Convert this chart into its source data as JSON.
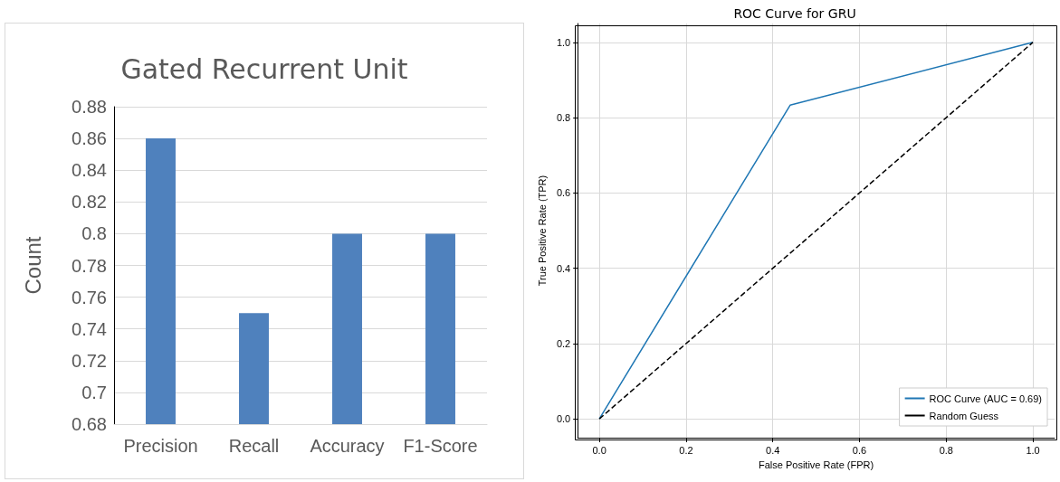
{
  "chart_data": [
    {
      "type": "bar",
      "title": "Gated Recurrent Unit",
      "ylabel": "Count",
      "categories": [
        "Precision",
        "Recall",
        "Accuracy",
        "F1-Score"
      ],
      "values": [
        0.86,
        0.75,
        0.8,
        0.8
      ],
      "color": "#4f81bd",
      "ylim": [
        0.68,
        0.88
      ],
      "yticks": [
        0.68,
        0.7,
        0.72,
        0.74,
        0.76,
        0.78,
        0.8,
        0.82,
        0.84,
        0.86,
        0.88
      ],
      "grid": "y",
      "legend": false
    },
    {
      "type": "line",
      "title": "ROC Curve for GRU",
      "xlabel": "False Positive Rate (FPR)",
      "ylabel": "True Positive Rate (TPR)",
      "xlim": [
        -0.05,
        1.05
      ],
      "ylim": [
        -0.05,
        1.05
      ],
      "xticks": [
        {
          "value": 0,
          "label": "0.0"
        },
        0.2,
        0.4,
        0.6,
        0.8,
        {
          "value": 1,
          "label": "1.0"
        }
      ],
      "yticks": [
        {
          "value": 0,
          "label": "0.0"
        },
        0.2,
        0.4,
        0.6,
        0.8,
        {
          "value": 1,
          "label": "1.0"
        }
      ],
      "grid": true,
      "legend": "bottom right",
      "marker": "none",
      "series": [
        {
          "name": "ROC Curve (AUC = 0.69)",
          "color": "#1f77b4",
          "x": [
            0,
            0.44,
            1
          ],
          "values": [
            0,
            0.833,
            1
          ],
          "line_style": "solid"
        },
        {
          "name": "Random Guess",
          "color": "#000000",
          "x": [
            0,
            1
          ],
          "values": [
            0,
            1
          ],
          "line_style": "dashed"
        }
      ]
    }
  ]
}
